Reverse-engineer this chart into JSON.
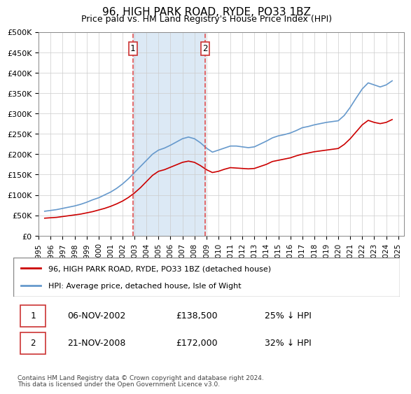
{
  "title": "96, HIGH PARK ROAD, RYDE, PO33 1BZ",
  "subtitle": "Price paid vs. HM Land Registry's House Price Index (HPI)",
  "ylabel_ticks": [
    "£0",
    "£50K",
    "£100K",
    "£150K",
    "£200K",
    "£250K",
    "£300K",
    "£350K",
    "£400K",
    "£450K",
    "£500K"
  ],
  "ytick_vals": [
    0,
    50000,
    100000,
    150000,
    200000,
    250000,
    300000,
    350000,
    400000,
    450000,
    500000
  ],
  "ylim": [
    0,
    500000
  ],
  "xlim_start": 1995.0,
  "xlim_end": 2025.5,
  "transaction1_year": 2002.85,
  "transaction2_year": 2008.9,
  "transaction1_label": "1",
  "transaction2_label": "2",
  "shade_color": "#dce9f5",
  "vline_color": "#e05050",
  "legend_line1": "96, HIGH PARK ROAD, RYDE, PO33 1BZ (detached house)",
  "legend_line2": "HPI: Average price, detached house, Isle of Wight",
  "red_line_color": "#cc0000",
  "blue_line_color": "#6699cc",
  "table_row1": [
    "1",
    "06-NOV-2002",
    "£138,500",
    "25% ↓ HPI"
  ],
  "table_row2": [
    "2",
    "21-NOV-2008",
    "£172,000",
    "32% ↓ HPI"
  ],
  "footnote1": "Contains HM Land Registry data © Crown copyright and database right 2024.",
  "footnote2": "This data is licensed under the Open Government Licence v3.0.",
  "hpi_data": {
    "years": [
      1995.5,
      1996.0,
      1996.5,
      1997.0,
      1997.5,
      1998.0,
      1998.5,
      1999.0,
      1999.5,
      2000.0,
      2000.5,
      2001.0,
      2001.5,
      2002.0,
      2002.5,
      2003.0,
      2003.5,
      2004.0,
      2004.5,
      2005.0,
      2005.5,
      2006.0,
      2006.5,
      2007.0,
      2007.5,
      2008.0,
      2008.5,
      2009.0,
      2009.5,
      2010.0,
      2010.5,
      2011.0,
      2011.5,
      2012.0,
      2012.5,
      2013.0,
      2013.5,
      2014.0,
      2014.5,
      2015.0,
      2015.5,
      2016.0,
      2016.5,
      2017.0,
      2017.5,
      2018.0,
      2018.5,
      2019.0,
      2019.5,
      2020.0,
      2020.5,
      2021.0,
      2021.5,
      2022.0,
      2022.5,
      2023.0,
      2023.5,
      2024.0,
      2024.5
    ],
    "values": [
      60000,
      62000,
      64000,
      67000,
      70000,
      73000,
      77000,
      82000,
      88000,
      93000,
      100000,
      107000,
      116000,
      127000,
      140000,
      155000,
      170000,
      185000,
      200000,
      210000,
      215000,
      222000,
      230000,
      238000,
      242000,
      238000,
      228000,
      215000,
      205000,
      210000,
      215000,
      220000,
      220000,
      218000,
      216000,
      218000,
      225000,
      232000,
      240000,
      245000,
      248000,
      252000,
      258000,
      265000,
      268000,
      272000,
      275000,
      278000,
      280000,
      282000,
      295000,
      315000,
      338000,
      360000,
      375000,
      370000,
      365000,
      370000,
      380000
    ]
  },
  "price_data": {
    "years": [
      1995.5,
      1996.0,
      1996.5,
      1997.0,
      1997.5,
      1998.0,
      1998.5,
      1999.0,
      1999.5,
      2000.0,
      2000.5,
      2001.0,
      2001.5,
      2002.0,
      2002.5,
      2003.0,
      2003.5,
      2004.0,
      2004.5,
      2005.0,
      2005.5,
      2006.0,
      2006.5,
      2007.0,
      2007.5,
      2008.0,
      2008.5,
      2009.0,
      2009.5,
      2010.0,
      2010.5,
      2011.0,
      2011.5,
      2012.0,
      2012.5,
      2013.0,
      2013.5,
      2014.0,
      2014.5,
      2015.0,
      2015.5,
      2016.0,
      2016.5,
      2017.0,
      2017.5,
      2018.0,
      2018.5,
      2019.0,
      2019.5,
      2020.0,
      2020.5,
      2021.0,
      2021.5,
      2022.0,
      2022.5,
      2023.0,
      2023.5,
      2024.0,
      2024.5
    ],
    "values": [
      43000,
      44000,
      45000,
      47000,
      49000,
      51000,
      53000,
      56000,
      59000,
      63000,
      67000,
      72000,
      78000,
      85000,
      94000,
      105000,
      118000,
      133000,
      148000,
      158000,
      162000,
      168000,
      174000,
      180000,
      183000,
      180000,
      172000,
      162000,
      155000,
      158000,
      163000,
      167000,
      166000,
      165000,
      164000,
      165000,
      170000,
      175000,
      182000,
      185000,
      188000,
      191000,
      196000,
      200000,
      203000,
      206000,
      208000,
      210000,
      212000,
      214000,
      224000,
      238000,
      255000,
      272000,
      283000,
      278000,
      275000,
      278000,
      285000
    ]
  }
}
